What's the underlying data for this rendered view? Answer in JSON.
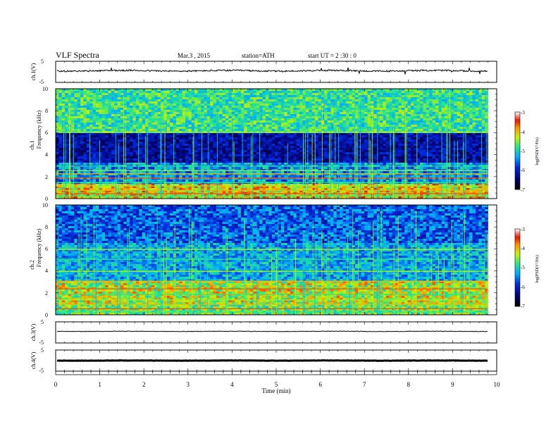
{
  "header": {
    "title": "VLF  Spectra",
    "date": "Mar.3  , 2015",
    "station": "station=ATH",
    "start": "start  UT  =   2  :30 : 0"
  },
  "chart_data": {
    "type": "heatmap",
    "x_axis": {
      "label": "Time  (min)",
      "range": [
        0,
        10
      ],
      "ticks": [
        "0",
        "1",
        "2",
        "3",
        "4",
        "5",
        "6",
        "7",
        "8",
        "9",
        "10"
      ]
    },
    "panels": [
      {
        "id": "ch1v",
        "type": "line",
        "ylabel": "ch.1(V)",
        "ylim": [
          -5,
          5
        ],
        "yticks": [
          "5",
          "-5"
        ],
        "level": 0.5,
        "noise": 0.35
      },
      {
        "id": "spec1",
        "type": "heatmap",
        "ylabel_top": "ch.1",
        "ylabel": "Frequency  (kHz)",
        "ylim": [
          0,
          10
        ],
        "yticks": [
          "0",
          "2",
          "4",
          "6",
          "8",
          "10"
        ],
        "time_extent_min": 9.8,
        "colorbar": {
          "label": "log(PSD(V²/Hz)",
          "range": [
            -7,
            -3
          ],
          "ticks": [
            "-3",
            "-4",
            "-5",
            "-6",
            "-7"
          ]
        }
      },
      {
        "id": "spec2",
        "type": "heatmap",
        "ylabel_top": "ch.2",
        "ylabel": "Frequency  (kHz)",
        "ylim": [
          0,
          10
        ],
        "yticks": [
          "0",
          "2",
          "4",
          "6",
          "8",
          "10"
        ],
        "time_extent_min": 9.8,
        "colorbar": {
          "label": "log(PSD(V²/Hz)",
          "range": [
            -7,
            -3
          ],
          "ticks": [
            "-3",
            "-4",
            "-5",
            "-6",
            "-7"
          ]
        }
      },
      {
        "id": "ch3v",
        "type": "line",
        "ylabel": "ch.3(V)",
        "ylim": [
          -5,
          5
        ],
        "yticks": [
          "5",
          "-5"
        ],
        "level": 0.5,
        "noise": 0.12
      },
      {
        "id": "ch4v",
        "type": "line",
        "ylabel": "ch.4(V)",
        "ylim": [
          -5,
          5
        ],
        "yticks": [
          "5",
          "-5"
        ],
        "level": 0.0,
        "noise": 0.08
      }
    ]
  }
}
